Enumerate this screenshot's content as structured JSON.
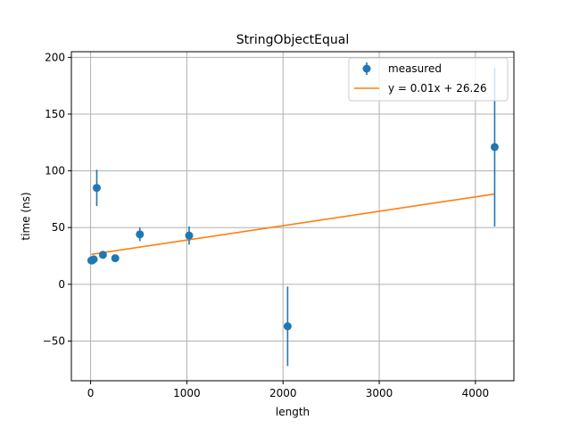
{
  "chart_data": {
    "type": "scatter",
    "title": "StringObjectEqual",
    "xlabel": "length",
    "ylabel": "time (ns)",
    "xlim": [
      -200,
      4400
    ],
    "ylim": [
      -85,
      205
    ],
    "xticks": [
      0,
      1000,
      2000,
      3000,
      4000
    ],
    "yticks": [
      -50,
      0,
      50,
      100,
      150,
      200
    ],
    "grid": true,
    "legend_position": "top-right",
    "series": [
      {
        "name": "measured",
        "kind": "errorbar",
        "color": "#1f77b4",
        "points": [
          {
            "x": 8,
            "y": 21,
            "err": 1
          },
          {
            "x": 16,
            "y": 21,
            "err": 1
          },
          {
            "x": 32,
            "y": 22,
            "err": 1
          },
          {
            "x": 64,
            "y": 85,
            "err": 16
          },
          {
            "x": 128,
            "y": 26,
            "err": 1
          },
          {
            "x": 256,
            "y": 23,
            "err": 1
          },
          {
            "x": 512,
            "y": 44,
            "err": 6
          },
          {
            "x": 1024,
            "y": 43,
            "err": 8
          },
          {
            "x": 2048,
            "y": -37,
            "err": 35
          },
          {
            "x": 4200,
            "y": 121,
            "err": 70
          }
        ]
      },
      {
        "name": "y = 0.01x + 26.26",
        "kind": "line",
        "color": "#ff7f0e",
        "slope": 0.0127,
        "intercept": 26.26,
        "x_range": [
          8,
          4200
        ]
      }
    ]
  }
}
